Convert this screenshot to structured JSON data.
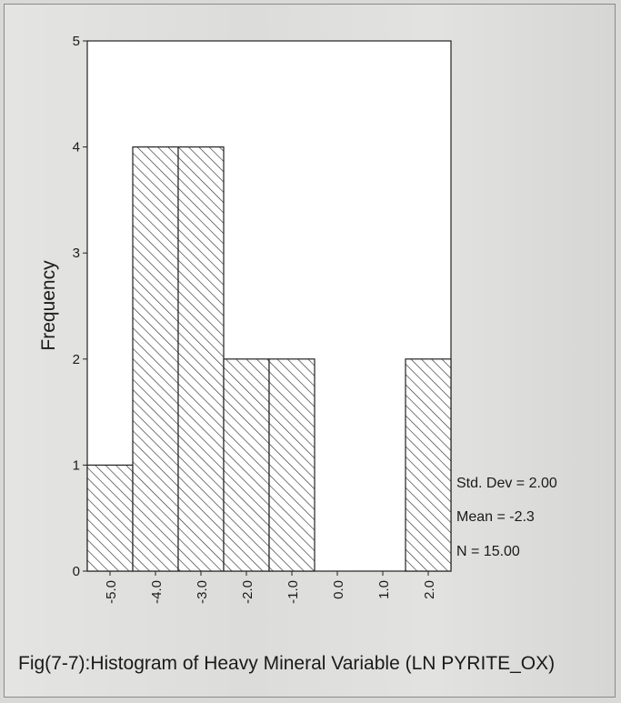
{
  "chart_data": {
    "type": "bar",
    "title": "",
    "xlabel": "",
    "ylabel": "Frequency",
    "ylim": [
      0,
      5
    ],
    "yticks": [
      "0",
      "1",
      "2",
      "3",
      "4",
      "5"
    ],
    "bins": [
      {
        "center": -5.0,
        "count": 1
      },
      {
        "center": -4.0,
        "count": 4
      },
      {
        "center": -3.0,
        "count": 4
      },
      {
        "center": -2.0,
        "count": 2
      },
      {
        "center": -1.0,
        "count": 2
      },
      {
        "center": 0.0,
        "count": 0
      },
      {
        "center": 1.0,
        "count": 0
      },
      {
        "center": 2.0,
        "count": 2
      }
    ],
    "xtick_labels": [
      "-5.0",
      "-4.0",
      "-3.0",
      "-2.0",
      "-1.0",
      "0.0",
      "1.0",
      "2.0"
    ],
    "stats": {
      "std_dev": "Std. Dev = 2.00",
      "mean": "Mean = -2.3",
      "n": "N = 15.00"
    },
    "hatch": "diagonal",
    "colors": {
      "fill": "#ffffff",
      "line": "#222222"
    }
  },
  "caption": "Fig(7-7):Histogram of Heavy Mineral Variable (LN PYRITE_OX)"
}
